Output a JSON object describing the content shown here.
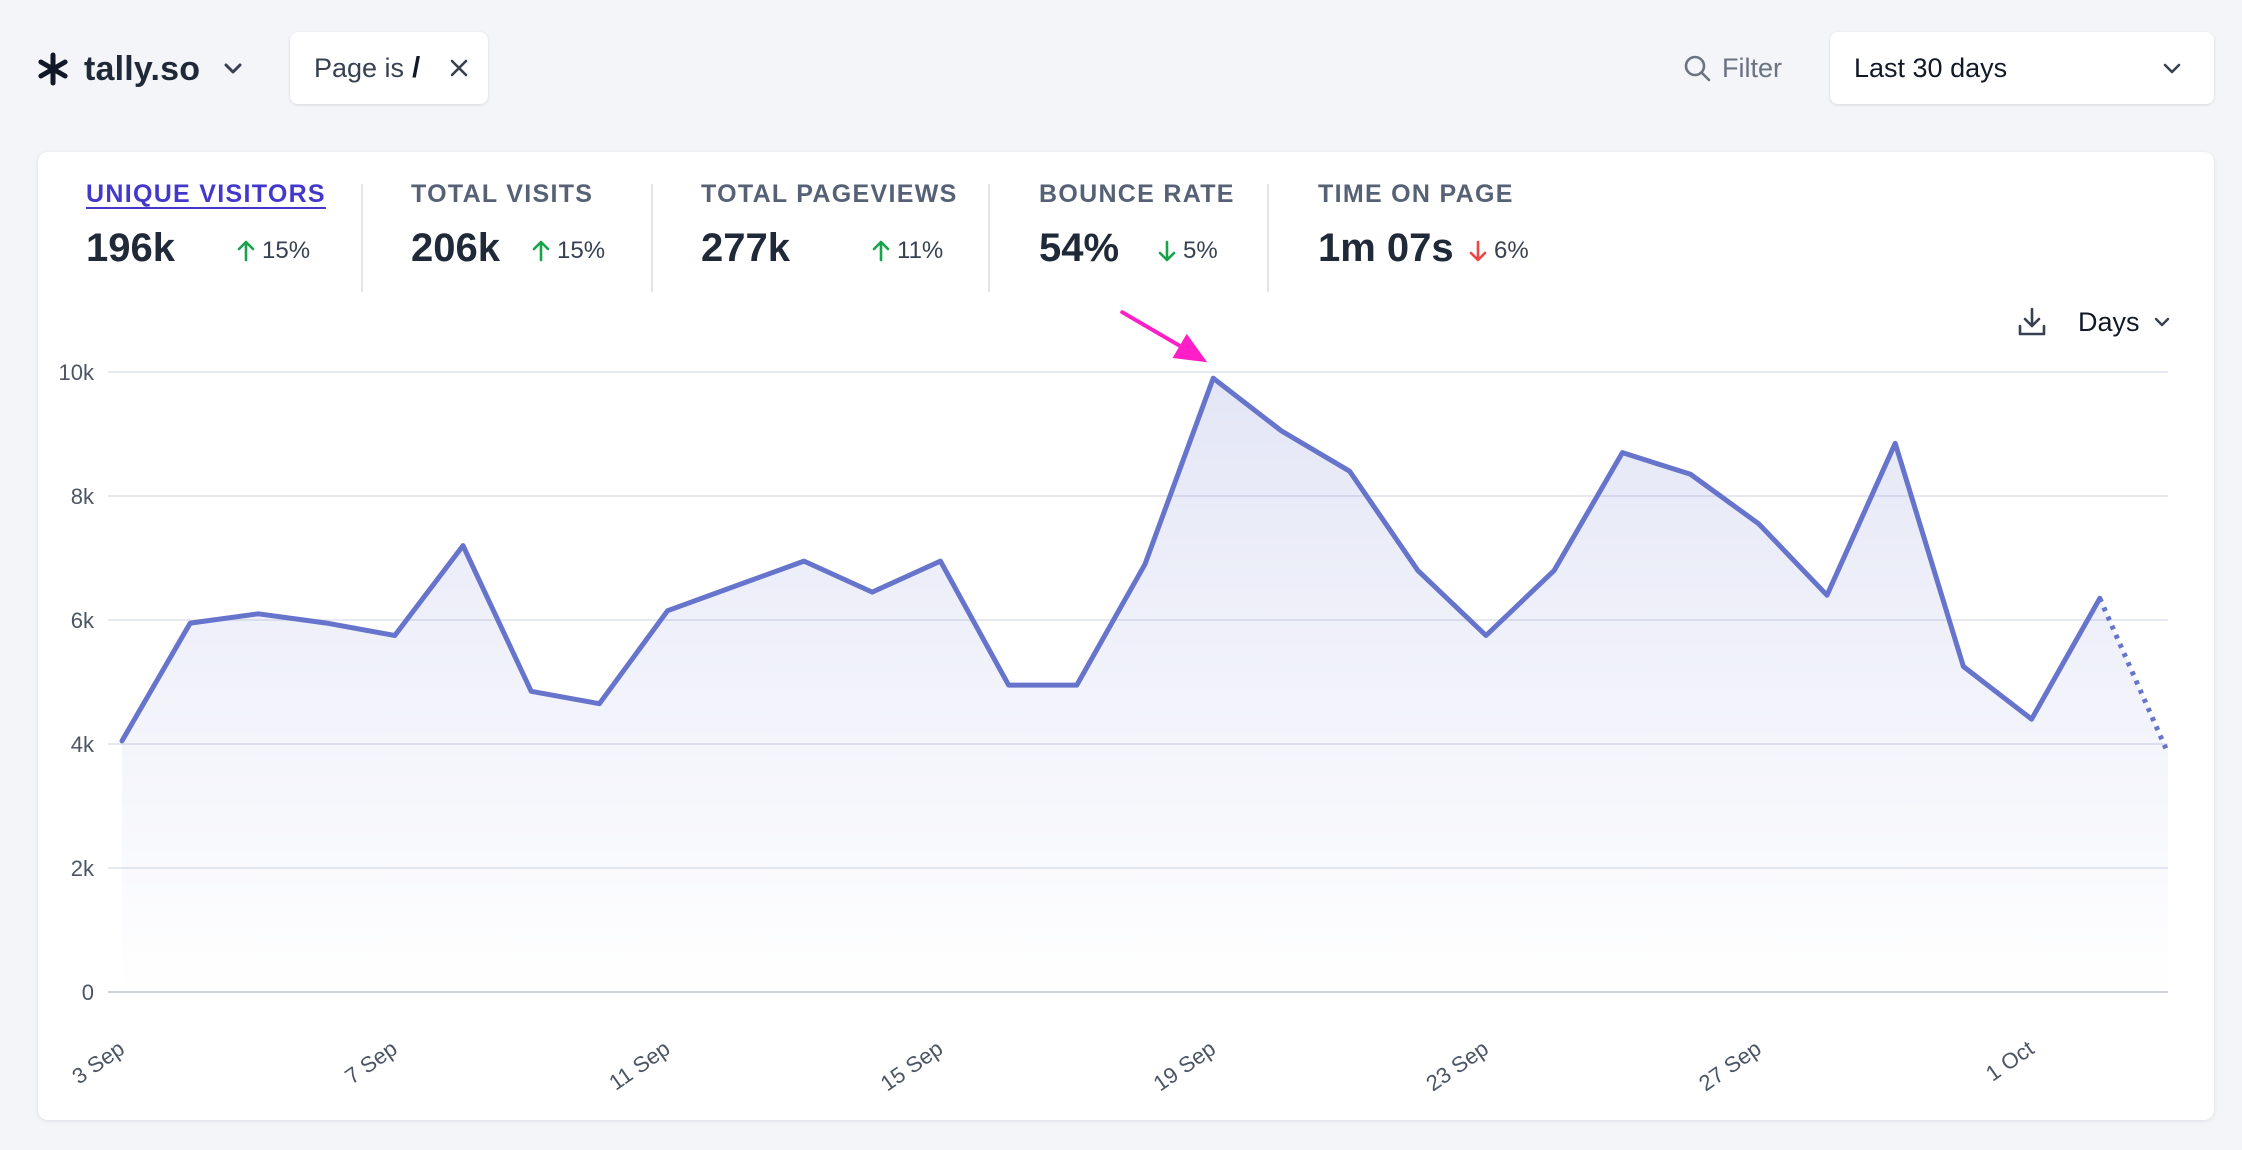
{
  "header": {
    "site_name": "tally.so",
    "filter_chip": {
      "text": "Page is",
      "value": "/"
    },
    "filter_label": "Filter",
    "date_range": "Last 30 days"
  },
  "metrics": [
    {
      "label": "UNIQUE VISITORS",
      "value": "196k",
      "change": "15%",
      "direction": "up",
      "active": true
    },
    {
      "label": "TOTAL VISITS",
      "value": "206k",
      "change": "15%",
      "direction": "up"
    },
    {
      "label": "TOTAL PAGEVIEWS",
      "value": "277k",
      "change": "11%",
      "direction": "up"
    },
    {
      "label": "BOUNCE RATE",
      "value": "54%",
      "change": "5%",
      "direction": "down"
    },
    {
      "label": "TIME ON PAGE",
      "value": "1m 07s",
      "change": "6%",
      "direction": "down"
    }
  ],
  "chart_controls": {
    "interval": "Days"
  },
  "colors": {
    "accent": "#6674cc",
    "active_metric": "#4338ca",
    "up": "#16a34a",
    "down_bad": "#ef4444",
    "annotation_arrow": "#ff1fc7"
  },
  "chart_data": {
    "type": "line",
    "title": "",
    "xlabel": "",
    "ylabel": "",
    "ylim": [
      0,
      10000
    ],
    "y_ticks": [
      {
        "value": 0,
        "label": "0"
      },
      {
        "value": 2000,
        "label": "2k"
      },
      {
        "value": 4000,
        "label": "4k"
      },
      {
        "value": 6000,
        "label": "6k"
      },
      {
        "value": 8000,
        "label": "8k"
      },
      {
        "value": 10000,
        "label": "10k"
      }
    ],
    "x_tick_labels": [
      "3 Sep",
      "7 Sep",
      "11 Sep",
      "15 Sep",
      "19 Sep",
      "23 Sep",
      "27 Sep",
      "1 Oct"
    ],
    "x_tick_days": [
      0,
      4,
      8,
      12,
      16,
      20,
      24,
      28
    ],
    "days": [
      "3 Sep",
      "4 Sep",
      "5 Sep",
      "6 Sep",
      "7 Sep",
      "8 Sep",
      "9 Sep",
      "10 Sep",
      "11 Sep",
      "12 Sep",
      "13 Sep",
      "14 Sep",
      "15 Sep",
      "16 Sep",
      "17 Sep",
      "18 Sep",
      "19 Sep",
      "20 Sep",
      "21 Sep",
      "22 Sep",
      "23 Sep",
      "24 Sep",
      "25 Sep",
      "26 Sep",
      "27 Sep",
      "28 Sep",
      "29 Sep",
      "30 Sep",
      "1 Oct",
      "2 Oct",
      "3 Oct"
    ],
    "series": [
      {
        "name": "Unique visitors",
        "values": [
          4050,
          5950,
          6100,
          5950,
          5750,
          7200,
          4850,
          4650,
          6150,
          6550,
          6950,
          6450,
          6950,
          4950,
          4950,
          6900,
          9900,
          9050,
          8400,
          6800,
          5750,
          6800,
          8700,
          8350,
          7550,
          6400,
          8850,
          5250,
          4400,
          6350,
          3850
        ],
        "partial_last": true
      }
    ],
    "annotation": {
      "type": "arrow",
      "target_day": "19 Sep"
    }
  }
}
